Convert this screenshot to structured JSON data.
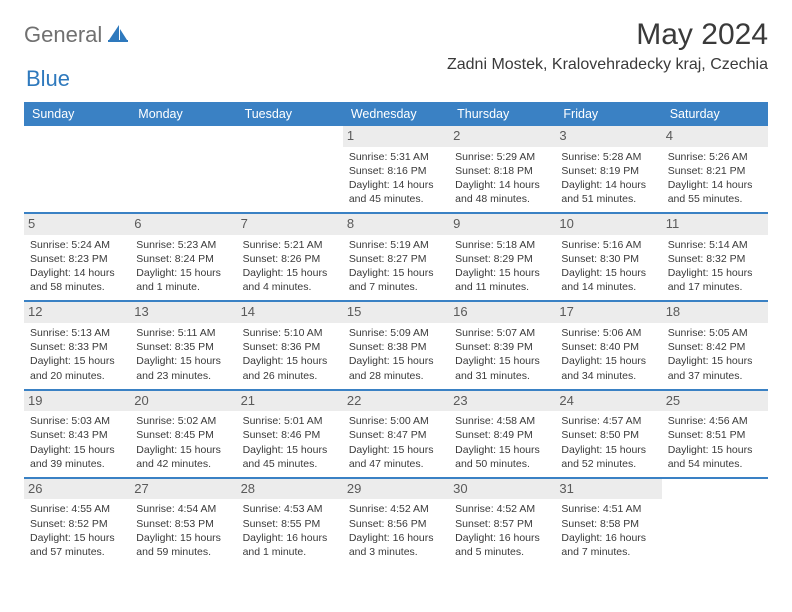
{
  "brand": {
    "text_gray": "General",
    "text_blue": "Blue"
  },
  "header": {
    "month_title": "May 2024",
    "location": "Zadni Mostek, Kralovehradecky kraj, Czechia"
  },
  "calendar": {
    "day_headers": [
      "Sunday",
      "Monday",
      "Tuesday",
      "Wednesday",
      "Thursday",
      "Friday",
      "Saturday"
    ],
    "header_bg": "#3a81c4",
    "header_fg": "#ffffff",
    "daynum_bg": "#ececec",
    "first_weekday_index": 3,
    "days": [
      {
        "n": "1",
        "sunrise": "Sunrise: 5:31 AM",
        "sunset": "Sunset: 8:16 PM",
        "daylight": "Daylight: 14 hours and 45 minutes."
      },
      {
        "n": "2",
        "sunrise": "Sunrise: 5:29 AM",
        "sunset": "Sunset: 8:18 PM",
        "daylight": "Daylight: 14 hours and 48 minutes."
      },
      {
        "n": "3",
        "sunrise": "Sunrise: 5:28 AM",
        "sunset": "Sunset: 8:19 PM",
        "daylight": "Daylight: 14 hours and 51 minutes."
      },
      {
        "n": "4",
        "sunrise": "Sunrise: 5:26 AM",
        "sunset": "Sunset: 8:21 PM",
        "daylight": "Daylight: 14 hours and 55 minutes."
      },
      {
        "n": "5",
        "sunrise": "Sunrise: 5:24 AM",
        "sunset": "Sunset: 8:23 PM",
        "daylight": "Daylight: 14 hours and 58 minutes."
      },
      {
        "n": "6",
        "sunrise": "Sunrise: 5:23 AM",
        "sunset": "Sunset: 8:24 PM",
        "daylight": "Daylight: 15 hours and 1 minute."
      },
      {
        "n": "7",
        "sunrise": "Sunrise: 5:21 AM",
        "sunset": "Sunset: 8:26 PM",
        "daylight": "Daylight: 15 hours and 4 minutes."
      },
      {
        "n": "8",
        "sunrise": "Sunrise: 5:19 AM",
        "sunset": "Sunset: 8:27 PM",
        "daylight": "Daylight: 15 hours and 7 minutes."
      },
      {
        "n": "9",
        "sunrise": "Sunrise: 5:18 AM",
        "sunset": "Sunset: 8:29 PM",
        "daylight": "Daylight: 15 hours and 11 minutes."
      },
      {
        "n": "10",
        "sunrise": "Sunrise: 5:16 AM",
        "sunset": "Sunset: 8:30 PM",
        "daylight": "Daylight: 15 hours and 14 minutes."
      },
      {
        "n": "11",
        "sunrise": "Sunrise: 5:14 AM",
        "sunset": "Sunset: 8:32 PM",
        "daylight": "Daylight: 15 hours and 17 minutes."
      },
      {
        "n": "12",
        "sunrise": "Sunrise: 5:13 AM",
        "sunset": "Sunset: 8:33 PM",
        "daylight": "Daylight: 15 hours and 20 minutes."
      },
      {
        "n": "13",
        "sunrise": "Sunrise: 5:11 AM",
        "sunset": "Sunset: 8:35 PM",
        "daylight": "Daylight: 15 hours and 23 minutes."
      },
      {
        "n": "14",
        "sunrise": "Sunrise: 5:10 AM",
        "sunset": "Sunset: 8:36 PM",
        "daylight": "Daylight: 15 hours and 26 minutes."
      },
      {
        "n": "15",
        "sunrise": "Sunrise: 5:09 AM",
        "sunset": "Sunset: 8:38 PM",
        "daylight": "Daylight: 15 hours and 28 minutes."
      },
      {
        "n": "16",
        "sunrise": "Sunrise: 5:07 AM",
        "sunset": "Sunset: 8:39 PM",
        "daylight": "Daylight: 15 hours and 31 minutes."
      },
      {
        "n": "17",
        "sunrise": "Sunrise: 5:06 AM",
        "sunset": "Sunset: 8:40 PM",
        "daylight": "Daylight: 15 hours and 34 minutes."
      },
      {
        "n": "18",
        "sunrise": "Sunrise: 5:05 AM",
        "sunset": "Sunset: 8:42 PM",
        "daylight": "Daylight: 15 hours and 37 minutes."
      },
      {
        "n": "19",
        "sunrise": "Sunrise: 5:03 AM",
        "sunset": "Sunset: 8:43 PM",
        "daylight": "Daylight: 15 hours and 39 minutes."
      },
      {
        "n": "20",
        "sunrise": "Sunrise: 5:02 AM",
        "sunset": "Sunset: 8:45 PM",
        "daylight": "Daylight: 15 hours and 42 minutes."
      },
      {
        "n": "21",
        "sunrise": "Sunrise: 5:01 AM",
        "sunset": "Sunset: 8:46 PM",
        "daylight": "Daylight: 15 hours and 45 minutes."
      },
      {
        "n": "22",
        "sunrise": "Sunrise: 5:00 AM",
        "sunset": "Sunset: 8:47 PM",
        "daylight": "Daylight: 15 hours and 47 minutes."
      },
      {
        "n": "23",
        "sunrise": "Sunrise: 4:58 AM",
        "sunset": "Sunset: 8:49 PM",
        "daylight": "Daylight: 15 hours and 50 minutes."
      },
      {
        "n": "24",
        "sunrise": "Sunrise: 4:57 AM",
        "sunset": "Sunset: 8:50 PM",
        "daylight": "Daylight: 15 hours and 52 minutes."
      },
      {
        "n": "25",
        "sunrise": "Sunrise: 4:56 AM",
        "sunset": "Sunset: 8:51 PM",
        "daylight": "Daylight: 15 hours and 54 minutes."
      },
      {
        "n": "26",
        "sunrise": "Sunrise: 4:55 AM",
        "sunset": "Sunset: 8:52 PM",
        "daylight": "Daylight: 15 hours and 57 minutes."
      },
      {
        "n": "27",
        "sunrise": "Sunrise: 4:54 AM",
        "sunset": "Sunset: 8:53 PM",
        "daylight": "Daylight: 15 hours and 59 minutes."
      },
      {
        "n": "28",
        "sunrise": "Sunrise: 4:53 AM",
        "sunset": "Sunset: 8:55 PM",
        "daylight": "Daylight: 16 hours and 1 minute."
      },
      {
        "n": "29",
        "sunrise": "Sunrise: 4:52 AM",
        "sunset": "Sunset: 8:56 PM",
        "daylight": "Daylight: 16 hours and 3 minutes."
      },
      {
        "n": "30",
        "sunrise": "Sunrise: 4:52 AM",
        "sunset": "Sunset: 8:57 PM",
        "daylight": "Daylight: 16 hours and 5 minutes."
      },
      {
        "n": "31",
        "sunrise": "Sunrise: 4:51 AM",
        "sunset": "Sunset: 8:58 PM",
        "daylight": "Daylight: 16 hours and 7 minutes."
      }
    ]
  }
}
